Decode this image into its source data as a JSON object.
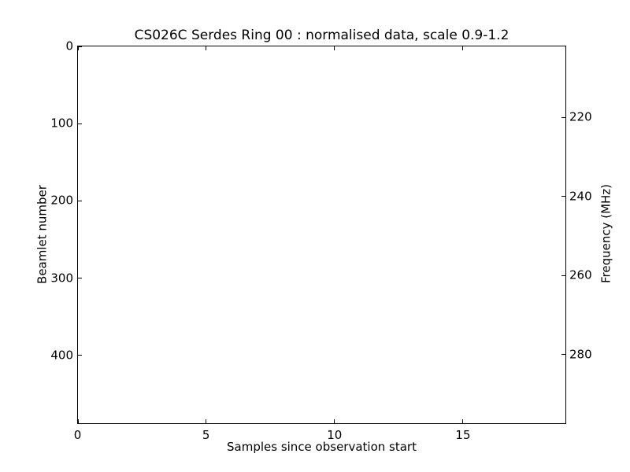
{
  "chart_data": {
    "type": "heatmap",
    "title": "CS026C Serdes Ring 00 : normalised data, scale 0.9-1.2",
    "xlabel": "Samples since observation start",
    "ylabel_left": "Beamlet number",
    "ylabel_right": "Frequency (MHz)",
    "x_ticks": [
      0,
      5,
      10,
      15
    ],
    "xlim": [
      0,
      19
    ],
    "y_left_ticks": [
      0,
      100,
      200,
      300,
      400
    ],
    "ylim_left": [
      0,
      488
    ],
    "y_left_inverted": true,
    "y_right_ticks": [
      220,
      240,
      260,
      280
    ],
    "ylim_right": [
      202.1,
      297.3
    ],
    "grid": false,
    "values": [],
    "colors": {
      "frame": "#000000",
      "text": "#000000",
      "plot_background": "#ffffff"
    }
  }
}
